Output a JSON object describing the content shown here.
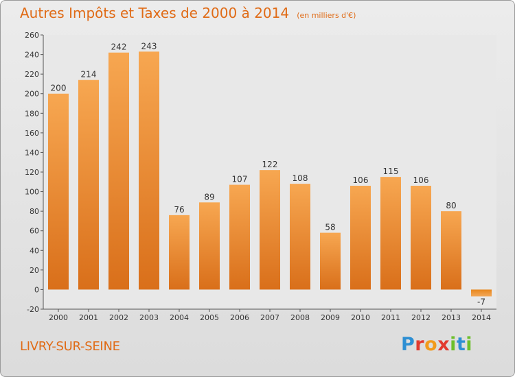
{
  "header": {
    "title": "Autres Impôts et Taxes de 2000 à 2014",
    "subtitle": "(en milliers d'€)"
  },
  "footer": {
    "commune": "LIVRY-SUR-SEINE",
    "logo_text": "Proxiti"
  },
  "colors": {
    "title": "#e06b16",
    "bar_top": "#f7a751",
    "bar_bottom": "#d96f1a",
    "bar_negative_top": "#e8871c",
    "bar_negative_bottom": "#f2a85a",
    "plot_background": "#e8e8e8",
    "grid": "#ffffff"
  },
  "chart_data": {
    "type": "bar",
    "title": "Autres Impôts et Taxes de 2000 à 2014",
    "subtitle": "(en milliers d'€)",
    "xlabel": "",
    "ylabel": "",
    "categories": [
      "2000",
      "2001",
      "2002",
      "2003",
      "2004",
      "2005",
      "2006",
      "2007",
      "2008",
      "2009",
      "2010",
      "2011",
      "2012",
      "2013",
      "2014"
    ],
    "values": [
      200,
      214,
      242,
      243,
      76,
      89,
      107,
      122,
      108,
      58,
      106,
      115,
      106,
      80,
      -7
    ],
    "ylim": [
      -20,
      260
    ],
    "yticks": [
      -20,
      0,
      20,
      40,
      60,
      80,
      100,
      120,
      140,
      160,
      180,
      200,
      220,
      240,
      260
    ],
    "grid": false,
    "data_labels": true
  }
}
